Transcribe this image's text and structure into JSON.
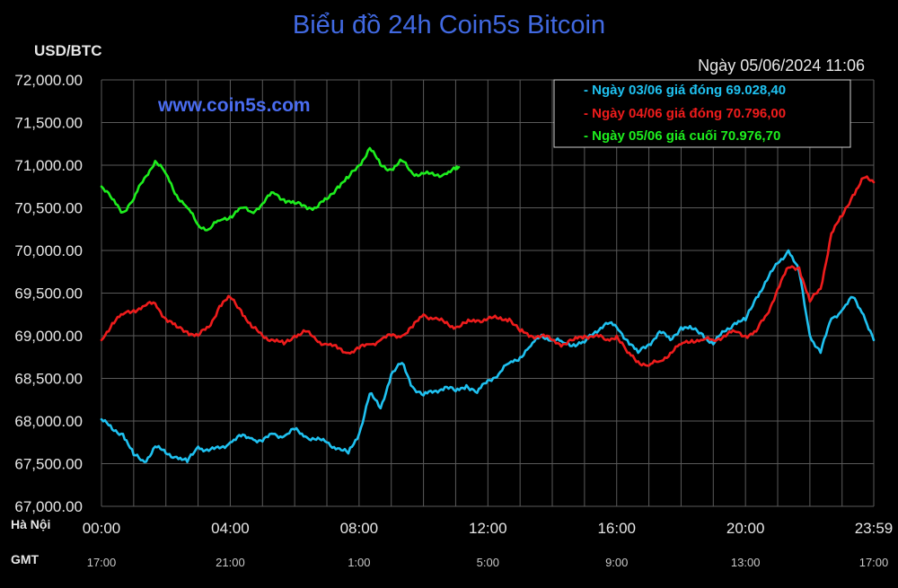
{
  "chart_data": {
    "type": "line",
    "title": "Biểu đồ 24h Coin5s Bitcoin",
    "ylabel": "USD/BTC",
    "timestamp": "Ngày 05/06/2024 11:06",
    "watermark": "www.coin5s.com",
    "ylim": [
      67000,
      72000
    ],
    "xlim": [
      0,
      1439
    ],
    "y_ticks": [
      72000,
      71500,
      71000,
      70500,
      70000,
      69500,
      69000,
      68500,
      68000,
      67500,
      67000
    ],
    "y_tick_labels": [
      "72,000.00",
      "71,500.00",
      "71,000.00",
      "70,500.00",
      "70,000.00",
      "69,500.00",
      "69,000.00",
      "68,500.00",
      "68,000.00",
      "67,500.00",
      "67,000.00"
    ],
    "grid": true,
    "x_ticks": [
      0,
      240,
      480,
      720,
      960,
      1200,
      1439
    ],
    "x_tick_labels_hanoi": [
      "00:00",
      "04:00",
      "08:00",
      "12:00",
      "16:00",
      "20:00",
      "23:59"
    ],
    "x_tick_labels_gmt": [
      "17:00",
      "21:00",
      "1:00",
      "5:00",
      "9:00",
      "13:00",
      "17:00"
    ],
    "row_label_hanoi": "Hà Nội",
    "row_label_gmt": "GMT",
    "legend_position": "top-right",
    "series": [
      {
        "name": "- Ngày 03/06 giá đóng 69.028,40",
        "color": "#1fc1f0",
        "x": [
          0,
          20,
          40,
          60,
          80,
          100,
          120,
          140,
          160,
          180,
          200,
          220,
          240,
          260,
          280,
          300,
          320,
          340,
          360,
          380,
          400,
          420,
          440,
          460,
          480,
          500,
          520,
          540,
          560,
          580,
          600,
          620,
          640,
          660,
          680,
          700,
          720,
          740,
          760,
          780,
          800,
          820,
          840,
          860,
          880,
          900,
          920,
          940,
          960,
          980,
          1000,
          1020,
          1040,
          1060,
          1080,
          1100,
          1120,
          1140,
          1160,
          1180,
          1200,
          1220,
          1240,
          1260,
          1280,
          1300,
          1320,
          1340,
          1360,
          1380,
          1400,
          1420,
          1439
        ],
        "y": [
          68020,
          67900,
          67850,
          67600,
          67520,
          67700,
          67620,
          67580,
          67520,
          67700,
          67650,
          67680,
          67750,
          67820,
          67800,
          67760,
          67850,
          67820,
          67900,
          67820,
          67780,
          67750,
          67680,
          67620,
          67850,
          68320,
          68150,
          68550,
          68680,
          68400,
          68300,
          68350,
          68400,
          68350,
          68420,
          68330,
          68480,
          68550,
          68680,
          68750,
          68880,
          69010,
          68950,
          68920,
          68900,
          68920,
          69050,
          69150,
          69100,
          68950,
          68800,
          68900,
          69050,
          68950,
          69100,
          69080,
          69020,
          68900,
          69050,
          69150,
          69180,
          69450,
          69650,
          69850,
          70000,
          69750,
          69000,
          68800,
          69200,
          69300,
          69450,
          69250,
          68950
        ]
      },
      {
        "name": "- Ngày 04/06 giá đóng 70.796,00",
        "color": "#ee1c1c",
        "x": [
          0,
          20,
          40,
          60,
          80,
          100,
          120,
          140,
          160,
          180,
          200,
          220,
          240,
          260,
          280,
          300,
          320,
          340,
          360,
          380,
          400,
          420,
          440,
          460,
          480,
          500,
          520,
          540,
          560,
          580,
          600,
          620,
          640,
          660,
          680,
          700,
          720,
          740,
          760,
          780,
          800,
          820,
          840,
          860,
          880,
          900,
          920,
          940,
          960,
          980,
          1000,
          1020,
          1040,
          1060,
          1080,
          1100,
          1120,
          1140,
          1160,
          1180,
          1200,
          1220,
          1240,
          1260,
          1280,
          1300,
          1320,
          1340,
          1360,
          1380,
          1400,
          1420,
          1439
        ],
        "y": [
          68950,
          69150,
          69250,
          69300,
          69350,
          69380,
          69200,
          69100,
          69050,
          69000,
          69100,
          69350,
          69450,
          69300,
          69100,
          69000,
          68950,
          68900,
          69000,
          69050,
          68950,
          68900,
          68850,
          68800,
          68850,
          68900,
          68950,
          69000,
          69000,
          69100,
          69250,
          69200,
          69150,
          69100,
          69150,
          69180,
          69200,
          69200,
          69200,
          69050,
          69000,
          69000,
          68950,
          68900,
          68950,
          69000,
          69000,
          68950,
          69000,
          68800,
          68700,
          68650,
          68700,
          68800,
          68900,
          68950,
          68950,
          68950,
          69000,
          69050,
          69000,
          69050,
          69250,
          69550,
          69800,
          69800,
          69400,
          69550,
          70200,
          70400,
          70650,
          70850,
          70800
        ]
      },
      {
        "name": "- Ngày 05/06 giá cuối 70.976,70",
        "color": "#1eee1e",
        "x": [
          0,
          20,
          40,
          60,
          80,
          100,
          120,
          140,
          160,
          180,
          200,
          220,
          240,
          260,
          280,
          300,
          320,
          340,
          360,
          380,
          400,
          420,
          440,
          460,
          480,
          500,
          520,
          540,
          560,
          580,
          600,
          620,
          640,
          660,
          666
        ],
        "y": [
          70750,
          70600,
          70450,
          70600,
          70850,
          71050,
          70900,
          70650,
          70500,
          70300,
          70250,
          70350,
          70400,
          70500,
          70450,
          70550,
          70680,
          70600,
          70550,
          70520,
          70500,
          70600,
          70750,
          70850,
          71000,
          71200,
          71000,
          70950,
          71050,
          70900,
          70900,
          70880,
          70900,
          70950,
          70976.7
        ]
      }
    ]
  }
}
